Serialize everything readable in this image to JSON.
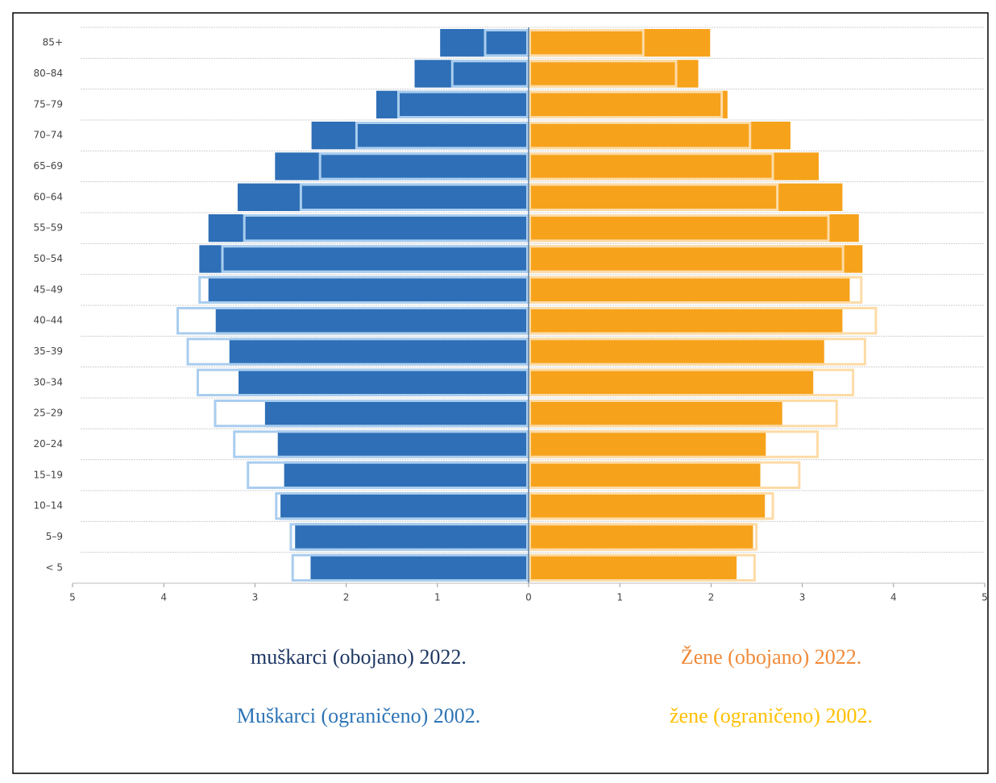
{
  "chart_data": {
    "type": "pyramid",
    "categories": [
      "85+",
      "80–84",
      "75–79",
      "70–74",
      "65–69",
      "60–64",
      "55–59",
      "50–54",
      "45–49",
      "40–44",
      "35–39",
      "30–34",
      "25–29",
      "20–24",
      "15–19",
      "10–14",
      "5–9",
      "< 5"
    ],
    "series": [
      {
        "name": "muškarci (obojano) 2022.",
        "color": "#2e6fb7",
        "legend_color": "#1f3864",
        "side": "left",
        "style": "filled",
        "values": [
          0.97,
          1.25,
          1.67,
          2.38,
          2.78,
          3.19,
          3.51,
          3.61,
          3.51,
          3.43,
          3.28,
          3.18,
          2.89,
          2.75,
          2.68,
          2.72,
          2.56,
          2.39
        ]
      },
      {
        "name": "Žene (obojano) 2022.",
        "color": "#f7a21b",
        "legend_color": "#f08a3a",
        "side": "right",
        "style": "filled",
        "values": [
          1.99,
          1.86,
          2.18,
          2.87,
          3.18,
          3.44,
          3.62,
          3.66,
          3.52,
          3.44,
          3.24,
          3.12,
          2.78,
          2.6,
          2.54,
          2.59,
          2.46,
          2.28
        ]
      },
      {
        "name": "Muškarci (ograničeno) 2002.",
        "color": "#a9cdef",
        "legend_color": "#2e75b6",
        "side": "left",
        "style": "outline",
        "values": [
          0.49,
          0.85,
          1.44,
          1.9,
          2.3,
          2.51,
          3.13,
          3.37,
          3.62,
          3.86,
          3.75,
          3.64,
          3.45,
          3.24,
          3.09,
          2.78,
          2.62,
          2.6
        ]
      },
      {
        "name": "žene (ograničeno) 2002.",
        "color": "#fddba6",
        "legend_color": "#ffc000",
        "side": "right",
        "style": "outline",
        "values": [
          1.27,
          1.63,
          2.13,
          2.44,
          2.69,
          2.74,
          3.3,
          3.46,
          3.66,
          3.82,
          3.7,
          3.57,
          3.39,
          3.18,
          2.98,
          2.69,
          2.51,
          2.49
        ]
      }
    ],
    "xlim": [
      -5,
      5
    ],
    "xticks": [
      {
        "value": -5,
        "label": "5"
      },
      {
        "value": -4,
        "label": "4"
      },
      {
        "value": -3,
        "label": "3"
      },
      {
        "value": -2,
        "label": "2"
      },
      {
        "value": -1,
        "label": "1"
      },
      0,
      1,
      2,
      3,
      4,
      5
    ],
    "grid": true
  }
}
